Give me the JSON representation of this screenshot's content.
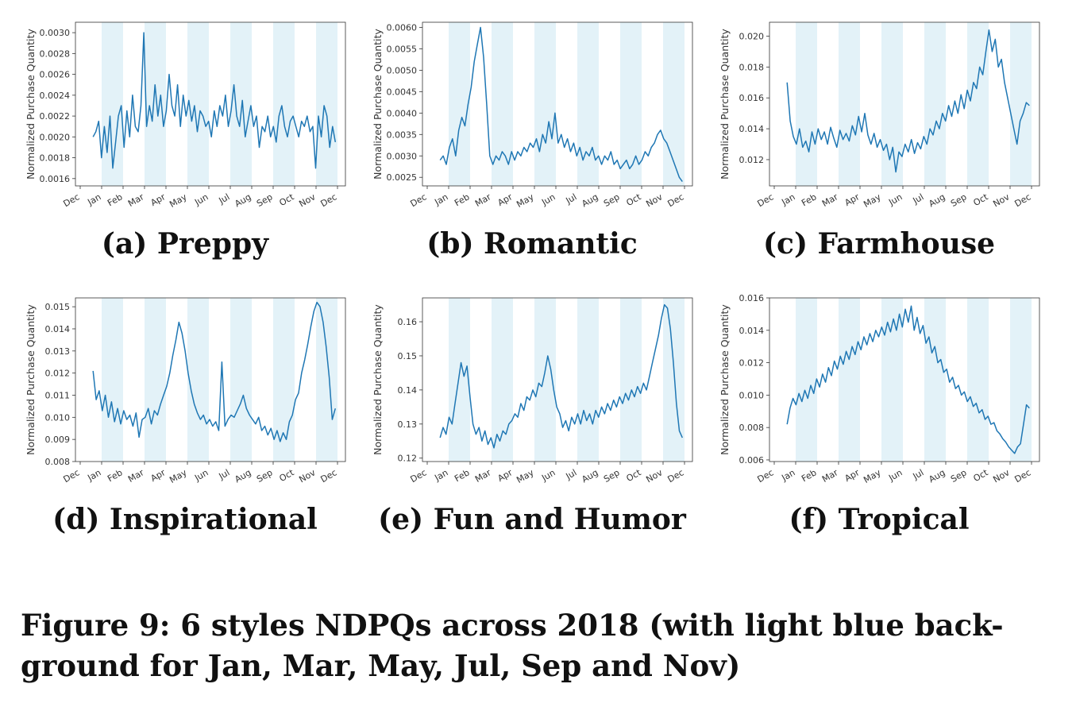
{
  "figure_caption_line1": "Figure 9: 6 styles NDPQs across 2018 (with light blue back-",
  "figure_caption_line2": "ground for Jan, Mar, May, Jul, Sep and Nov)",
  "colors": {
    "line": "#1f77b4",
    "band": "#e3f2f8",
    "axis": "#333333"
  },
  "chart_data": [
    {
      "id": "a",
      "type": "line",
      "caption": "(a) Preppy",
      "ylabel": "Normalized Purchase Quantity",
      "xticks": [
        "Dec",
        "Jan",
        "Feb",
        "Mar",
        "Apr",
        "May",
        "Jun",
        "Jul",
        "Aug",
        "Sep",
        "Oct",
        "Nov",
        "Dec"
      ],
      "yticks": [
        "0.0016",
        "0.0018",
        "0.0020",
        "0.0022",
        "0.0024",
        "0.0026",
        "0.0028",
        "0.0030"
      ],
      "ylim": [
        0.00153,
        0.0031
      ],
      "shaded_months": [
        "Jan",
        "Mar",
        "May",
        "Jul",
        "Sep",
        "Nov"
      ],
      "series": [
        {
          "values": [
            0.002,
            0.00205,
            0.00215,
            0.0018,
            0.0021,
            0.00185,
            0.0022,
            0.0017,
            0.00195,
            0.0022,
            0.0023,
            0.0019,
            0.00225,
            0.002,
            0.0024,
            0.0021,
            0.00205,
            0.0023,
            0.003,
            0.0021,
            0.0023,
            0.00215,
            0.0025,
            0.0022,
            0.0024,
            0.0021,
            0.00225,
            0.0026,
            0.0023,
            0.0022,
            0.0025,
            0.0021,
            0.0024,
            0.0022,
            0.00235,
            0.00215,
            0.0023,
            0.00205,
            0.00225,
            0.0022,
            0.0021,
            0.00215,
            0.002,
            0.00225,
            0.0021,
            0.0023,
            0.0022,
            0.0024,
            0.0021,
            0.00225,
            0.0025,
            0.0022,
            0.0021,
            0.00235,
            0.002,
            0.00215,
            0.0023,
            0.0021,
            0.0022,
            0.0019,
            0.0021,
            0.00205,
            0.0022,
            0.002,
            0.0021,
            0.00195,
            0.0022,
            0.0023,
            0.0021,
            0.002,
            0.00215,
            0.0022,
            0.0021,
            0.002,
            0.00215,
            0.0021,
            0.0022,
            0.00205,
            0.0021,
            0.0017,
            0.0022,
            0.002,
            0.0023,
            0.0022,
            0.0019,
            0.0021,
            0.00195
          ]
        }
      ]
    },
    {
      "id": "b",
      "type": "line",
      "caption": "(b) Romantic",
      "ylabel": "Normalized Purchase Quantity",
      "xticks": [
        "Dec",
        "Jan",
        "Feb",
        "Mar",
        "Apr",
        "May",
        "Jun",
        "Jul",
        "Aug",
        "Sep",
        "Oct",
        "Nov",
        "Dec"
      ],
      "yticks": [
        "0.0025",
        "0.0030",
        "0.0035",
        "0.0040",
        "0.0045",
        "0.0050",
        "0.0055",
        "0.0060"
      ],
      "ylim": [
        0.0023,
        0.00612
      ],
      "shaded_months": [
        "Jan",
        "Mar",
        "May",
        "Jul",
        "Sep",
        "Nov"
      ],
      "series": [
        {
          "values": [
            0.0029,
            0.003,
            0.0028,
            0.0032,
            0.0034,
            0.003,
            0.0036,
            0.0039,
            0.0037,
            0.0042,
            0.0046,
            0.0052,
            0.0056,
            0.006,
            0.0053,
            0.0042,
            0.003,
            0.0028,
            0.003,
            0.0029,
            0.0031,
            0.003,
            0.0028,
            0.0031,
            0.0029,
            0.0031,
            0.003,
            0.0032,
            0.0031,
            0.0033,
            0.0032,
            0.0034,
            0.0031,
            0.0035,
            0.0033,
            0.0038,
            0.0034,
            0.004,
            0.0033,
            0.0035,
            0.0032,
            0.0034,
            0.0031,
            0.0033,
            0.003,
            0.0032,
            0.0029,
            0.0031,
            0.003,
            0.0032,
            0.0029,
            0.003,
            0.0028,
            0.003,
            0.0029,
            0.0031,
            0.0028,
            0.0029,
            0.0027,
            0.0028,
            0.0029,
            0.0027,
            0.0028,
            0.003,
            0.0028,
            0.0029,
            0.0031,
            0.003,
            0.0032,
            0.0033,
            0.0035,
            0.0036,
            0.0034,
            0.0033,
            0.0031,
            0.0029,
            0.0027,
            0.0025,
            0.0024
          ]
        }
      ]
    },
    {
      "id": "c",
      "type": "line",
      "caption": "(c) Farmhouse",
      "ylabel": "Normalized Purchase Quantity",
      "xticks": [
        "Dec",
        "Jan",
        "Feb",
        "Mar",
        "Apr",
        "May",
        "Jun",
        "Jul",
        "Aug",
        "Sep",
        "Oct",
        "Nov",
        "Dec"
      ],
      "yticks": [
        "0.012",
        "0.014",
        "0.016",
        "0.018",
        "0.020"
      ],
      "ylim": [
        0.0103,
        0.0209
      ],
      "shaded_months": [
        "Jan",
        "Mar",
        "May",
        "Jul",
        "Sep",
        "Nov"
      ],
      "series": [
        {
          "values": [
            0.017,
            0.0145,
            0.0135,
            0.013,
            0.014,
            0.0128,
            0.0132,
            0.0125,
            0.0138,
            0.013,
            0.014,
            0.0133,
            0.0138,
            0.013,
            0.0141,
            0.0134,
            0.0128,
            0.0139,
            0.0133,
            0.0137,
            0.0132,
            0.0142,
            0.0136,
            0.0148,
            0.0138,
            0.015,
            0.0136,
            0.013,
            0.0137,
            0.0128,
            0.0133,
            0.0126,
            0.013,
            0.012,
            0.0128,
            0.0112,
            0.0125,
            0.0122,
            0.013,
            0.0125,
            0.0133,
            0.0124,
            0.0131,
            0.0127,
            0.0135,
            0.013,
            0.014,
            0.0136,
            0.0145,
            0.014,
            0.015,
            0.0145,
            0.0155,
            0.0148,
            0.0158,
            0.015,
            0.0162,
            0.0153,
            0.0165,
            0.0158,
            0.017,
            0.0166,
            0.018,
            0.0175,
            0.019,
            0.0204,
            0.019,
            0.0198,
            0.018,
            0.0185,
            0.017,
            0.016,
            0.015,
            0.014,
            0.013,
            0.0145,
            0.015,
            0.0157,
            0.0155
          ]
        }
      ]
    },
    {
      "id": "d",
      "type": "line",
      "caption": "(d) Inspirational",
      "ylabel": "Normalized Purchase Quantity",
      "xticks": [
        "Dec",
        "Jan",
        "Feb",
        "Mar",
        "Apr",
        "May",
        "Jun",
        "Jul",
        "Aug",
        "Sep",
        "Oct",
        "Nov",
        "Dec"
      ],
      "yticks": [
        "0.008",
        "0.009",
        "0.010",
        "0.011",
        "0.012",
        "0.013",
        "0.014",
        "0.015"
      ],
      "ylim": [
        0.008,
        0.0154
      ],
      "shaded_months": [
        "Jan",
        "Mar",
        "May",
        "Jul",
        "Sep",
        "Nov"
      ],
      "series": [
        {
          "values": [
            0.0121,
            0.0108,
            0.0112,
            0.0103,
            0.011,
            0.01,
            0.0107,
            0.0098,
            0.0104,
            0.0097,
            0.0103,
            0.0099,
            0.0101,
            0.0096,
            0.0102,
            0.0091,
            0.0099,
            0.01,
            0.0104,
            0.0097,
            0.0103,
            0.0101,
            0.0106,
            0.011,
            0.0114,
            0.012,
            0.0128,
            0.0135,
            0.0143,
            0.0138,
            0.013,
            0.012,
            0.0112,
            0.0106,
            0.0102,
            0.0099,
            0.0101,
            0.0097,
            0.0099,
            0.0096,
            0.0098,
            0.0094,
            0.0125,
            0.0096,
            0.0099,
            0.0101,
            0.01,
            0.0103,
            0.0106,
            0.011,
            0.0104,
            0.0101,
            0.0099,
            0.0097,
            0.01,
            0.0094,
            0.0096,
            0.0092,
            0.0095,
            0.009,
            0.0094,
            0.0089,
            0.0093,
            0.009,
            0.0098,
            0.0101,
            0.0108,
            0.0111,
            0.012,
            0.0126,
            0.0133,
            0.0141,
            0.0148,
            0.0152,
            0.015,
            0.0143,
            0.0132,
            0.0118,
            0.0099,
            0.0104
          ]
        }
      ]
    },
    {
      "id": "e",
      "type": "line",
      "caption": "(e) Fun and Humor",
      "ylabel": "Normalized Purchase Quantity",
      "xticks": [
        "Dec",
        "Jan",
        "Feb",
        "Mar",
        "Apr",
        "May",
        "Jun",
        "Jul",
        "Aug",
        "Sep",
        "Oct",
        "Nov",
        "Dec"
      ],
      "yticks": [
        "0.12",
        "0.13",
        "0.14",
        "0.15",
        "0.16"
      ],
      "ylim": [
        0.119,
        0.167
      ],
      "shaded_months": [
        "Jan",
        "Mar",
        "May",
        "Jul",
        "Sep",
        "Nov"
      ],
      "series": [
        {
          "values": [
            0.126,
            0.129,
            0.127,
            0.132,
            0.13,
            0.136,
            0.142,
            0.148,
            0.144,
            0.147,
            0.138,
            0.13,
            0.127,
            0.129,
            0.125,
            0.128,
            0.124,
            0.126,
            0.123,
            0.127,
            0.125,
            0.128,
            0.127,
            0.13,
            0.131,
            0.133,
            0.132,
            0.136,
            0.134,
            0.138,
            0.137,
            0.14,
            0.138,
            0.142,
            0.141,
            0.145,
            0.15,
            0.146,
            0.14,
            0.135,
            0.133,
            0.129,
            0.131,
            0.128,
            0.132,
            0.13,
            0.133,
            0.13,
            0.134,
            0.131,
            0.133,
            0.13,
            0.134,
            0.132,
            0.135,
            0.133,
            0.136,
            0.134,
            0.137,
            0.135,
            0.138,
            0.136,
            0.139,
            0.137,
            0.14,
            0.138,
            0.141,
            0.139,
            0.142,
            0.14,
            0.144,
            0.148,
            0.152,
            0.156,
            0.161,
            0.165,
            0.164,
            0.158,
            0.148,
            0.136,
            0.128,
            0.126
          ]
        }
      ]
    },
    {
      "id": "f",
      "type": "line",
      "caption": "(f) Tropical",
      "ylabel": "Normalized Purchase Quantity",
      "xticks": [
        "Dec",
        "Jan",
        "Feb",
        "Mar",
        "Apr",
        "May",
        "Jun",
        "Jul",
        "Aug",
        "Sep",
        "Oct",
        "Nov",
        "Dec"
      ],
      "yticks": [
        "0.006",
        "0.008",
        "0.010",
        "0.012",
        "0.014",
        "0.016"
      ],
      "ylim": [
        0.0059,
        0.016
      ],
      "shaded_months": [
        "Jan",
        "Mar",
        "May",
        "Jul",
        "Sep",
        "Nov"
      ],
      "series": [
        {
          "values": [
            0.0082,
            0.0092,
            0.0098,
            0.0094,
            0.0101,
            0.0096,
            0.0103,
            0.0098,
            0.0106,
            0.0101,
            0.011,
            0.0105,
            0.0113,
            0.0108,
            0.0117,
            0.0112,
            0.0121,
            0.0116,
            0.0124,
            0.0119,
            0.0127,
            0.0122,
            0.013,
            0.0125,
            0.0133,
            0.0128,
            0.0136,
            0.0131,
            0.0138,
            0.0133,
            0.014,
            0.0136,
            0.0142,
            0.0137,
            0.0145,
            0.0139,
            0.0147,
            0.014,
            0.015,
            0.0142,
            0.0153,
            0.0145,
            0.0155,
            0.014,
            0.0148,
            0.0138,
            0.0143,
            0.0132,
            0.0136,
            0.0126,
            0.013,
            0.012,
            0.0122,
            0.0114,
            0.0116,
            0.0108,
            0.0111,
            0.0104,
            0.0106,
            0.01,
            0.0102,
            0.0096,
            0.0099,
            0.0093,
            0.0095,
            0.0089,
            0.0091,
            0.0085,
            0.0087,
            0.0082,
            0.0083,
            0.0078,
            0.0076,
            0.0073,
            0.0071,
            0.0068,
            0.0066,
            0.0064,
            0.0068,
            0.007,
            0.0082,
            0.0094,
            0.0092
          ]
        }
      ]
    }
  ]
}
